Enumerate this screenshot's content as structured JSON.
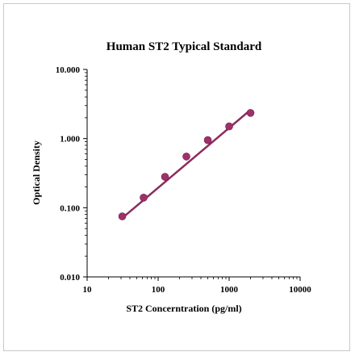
{
  "chart_data": {
    "type": "scatter",
    "title": "Human ST2 Typical Standard",
    "xlabel": "ST2 Concerntration (pg/ml)",
    "ylabel": "Optical Density",
    "x_scale": "log",
    "y_scale": "log",
    "xlim": [
      10,
      10000
    ],
    "ylim": [
      0.01,
      10
    ],
    "x_ticks": [
      "10",
      "100",
      "1000",
      "10000"
    ],
    "y_ticks": [
      "10.000",
      "1.000",
      "0.100",
      "0.010"
    ],
    "grid": false,
    "legend": "none",
    "series": [
      {
        "x": [
          31.25,
          62.5,
          125,
          250,
          500,
          1000,
          2000
        ],
        "y": [
          0.075,
          0.14,
          0.28,
          0.55,
          0.95,
          1.5,
          2.35
        ]
      }
    ],
    "fit_line": {
      "x": [
        31.25,
        2000
      ],
      "y": [
        0.071,
        2.6
      ]
    },
    "colors": {
      "marker": "#a0306a",
      "line": "#8b2c5e",
      "axis": "#000000"
    }
  }
}
